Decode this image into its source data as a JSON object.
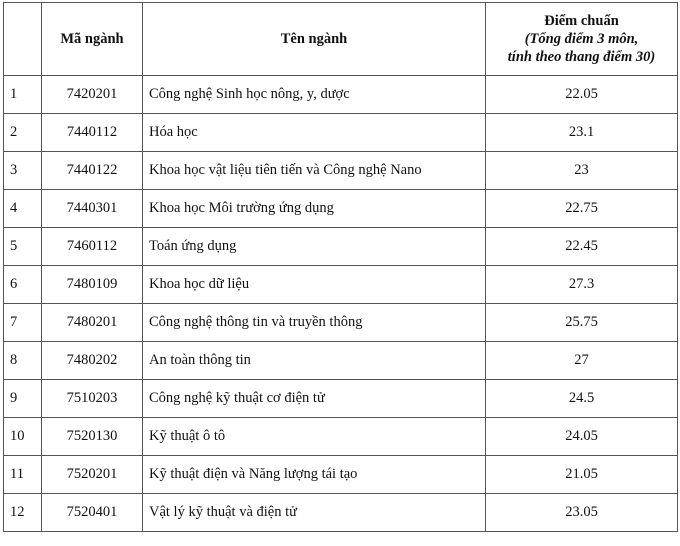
{
  "headers": {
    "stt": "",
    "code": "Mã ngành",
    "name": "Tên ngành",
    "score_title": "Điểm chuẩn",
    "score_note1": "(Tổng điểm 3 môn,",
    "score_note2": "tính theo thang điểm 30)"
  },
  "rows": [
    {
      "stt": "1",
      "code": "7420201",
      "name": "Công nghệ Sinh học nông, y, dược",
      "score": "22.05"
    },
    {
      "stt": "2",
      "code": "7440112",
      "name": "Hóa học",
      "score": "23.1"
    },
    {
      "stt": "3",
      "code": "7440122",
      "name": "Khoa học vật liệu tiên tiến và Công nghệ Nano",
      "score": "23"
    },
    {
      "stt": "4",
      "code": "7440301",
      "name": "Khoa học Môi trường ứng dụng",
      "score": "22.75"
    },
    {
      "stt": "5",
      "code": "7460112",
      "name": "Toán ứng dụng",
      "score": "22.45"
    },
    {
      "stt": "6",
      "code": "7480109",
      "name": "Khoa học dữ liệu",
      "score": "27.3"
    },
    {
      "stt": "7",
      "code": "7480201",
      "name": "Công nghệ thông tin và truyền thông",
      "score": "25.75"
    },
    {
      "stt": "8",
      "code": "7480202",
      "name": "An toàn thông tin",
      "score": "27"
    },
    {
      "stt": "9",
      "code": "7510203",
      "name": "Công nghệ kỹ thuật cơ điện tử",
      "score": "24.5"
    },
    {
      "stt": "10",
      "code": "7520130",
      "name": "Kỹ thuật ô tô",
      "score": "24.05"
    },
    {
      "stt": "11",
      "code": "7520201",
      "name": "Kỹ thuật điện và Năng lượng tái tạo",
      "score": "21.05"
    },
    {
      "stt": "12",
      "code": "7520401",
      "name": "Vật lý kỹ thuật và điện tử",
      "score": "23.05"
    }
  ]
}
